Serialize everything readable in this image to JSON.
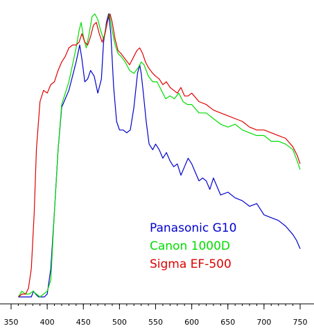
{
  "chart_data": {
    "type": "line",
    "title": "",
    "xlabel": "",
    "ylabel": "",
    "xlim": [
      350,
      750
    ],
    "ylim": [
      0,
      1
    ],
    "x_ticks": [
      350,
      400,
      450,
      500,
      550,
      600,
      650,
      700,
      750
    ],
    "x_minor_step": 10,
    "grid": false,
    "y_axis_shown": false,
    "legend_position": "bottom-right",
    "series": [
      {
        "name": "Panasonic G10",
        "color": "#0000cc",
        "x": [
          360,
          370,
          378,
          381,
          384,
          388,
          392,
          396,
          400,
          405,
          410,
          415,
          420,
          425,
          430,
          435,
          440,
          445,
          448,
          452,
          456,
          460,
          465,
          470,
          475,
          478,
          482,
          485,
          488,
          492,
          496,
          500,
          505,
          510,
          515,
          520,
          525,
          528,
          530,
          533,
          537,
          541,
          546,
          550,
          555,
          560,
          565,
          570,
          575,
          580,
          585,
          590,
          595,
          600,
          605,
          610,
          615,
          620,
          625,
          630,
          640,
          650,
          660,
          670,
          680,
          690,
          700,
          710,
          720,
          730,
          740,
          745,
          750
        ],
        "y": [
          0.0,
          0.0,
          0.0,
          0.02,
          0.01,
          0.0,
          0.0,
          0.0,
          0.01,
          0.1,
          0.3,
          0.52,
          0.67,
          0.7,
          0.73,
          0.78,
          0.83,
          0.89,
          0.84,
          0.76,
          0.77,
          0.8,
          0.78,
          0.72,
          0.77,
          0.9,
          0.97,
          1.0,
          0.93,
          0.74,
          0.62,
          0.59,
          0.59,
          0.58,
          0.59,
          0.67,
          0.79,
          0.82,
          0.79,
          0.72,
          0.62,
          0.54,
          0.52,
          0.54,
          0.52,
          0.49,
          0.51,
          0.48,
          0.46,
          0.47,
          0.43,
          0.46,
          0.49,
          0.47,
          0.44,
          0.41,
          0.42,
          0.41,
          0.38,
          0.42,
          0.36,
          0.37,
          0.35,
          0.34,
          0.32,
          0.33,
          0.29,
          0.28,
          0.27,
          0.25,
          0.22,
          0.2,
          0.17
        ]
      },
      {
        "name": "Canon 1000D",
        "color": "#00dd00",
        "x": [
          360,
          365,
          370,
          375,
          380,
          385,
          390,
          395,
          400,
          405,
          410,
          415,
          420,
          425,
          430,
          435,
          440,
          444,
          447,
          450,
          454,
          458,
          462,
          466,
          470,
          474,
          478,
          482,
          486,
          490,
          494,
          498,
          502,
          508,
          514,
          520,
          526,
          530,
          534,
          540,
          546,
          552,
          558,
          564,
          570,
          576,
          582,
          588,
          594,
          600,
          610,
          620,
          630,
          640,
          650,
          660,
          670,
          680,
          690,
          700,
          710,
          720,
          730,
          740,
          746,
          750
        ],
        "y": [
          0.0,
          0.02,
          0.01,
          0.01,
          0.02,
          0.01,
          0.0,
          0.01,
          0.02,
          0.06,
          0.3,
          0.52,
          0.68,
          0.72,
          0.76,
          0.82,
          0.88,
          0.94,
          0.97,
          0.92,
          0.88,
          0.93,
          0.99,
          1.0,
          0.98,
          0.94,
          0.91,
          0.96,
          1.0,
          0.94,
          0.89,
          0.86,
          0.85,
          0.83,
          0.8,
          0.79,
          0.81,
          0.83,
          0.82,
          0.78,
          0.76,
          0.76,
          0.73,
          0.7,
          0.71,
          0.7,
          0.72,
          0.69,
          0.68,
          0.68,
          0.65,
          0.65,
          0.63,
          0.61,
          0.6,
          0.61,
          0.59,
          0.58,
          0.57,
          0.57,
          0.55,
          0.55,
          0.54,
          0.52,
          0.48,
          0.45
        ]
      },
      {
        "name": "Sigma EF-500",
        "color": "#dd0000",
        "x": [
          360,
          365,
          370,
          374,
          378,
          382,
          385,
          390,
          395,
          400,
          405,
          410,
          415,
          420,
          425,
          430,
          435,
          440,
          444,
          448,
          452,
          456,
          460,
          464,
          468,
          472,
          476,
          480,
          484,
          487,
          490,
          494,
          498,
          502,
          508,
          514,
          520,
          524,
          528,
          532,
          536,
          540,
          546,
          550,
          555,
          560,
          565,
          570,
          575,
          580,
          585,
          590,
          595,
          600,
          610,
          620,
          630,
          640,
          650,
          660,
          670,
          680,
          690,
          700,
          710,
          720,
          730,
          740,
          746,
          750
        ],
        "y": [
          0.0,
          0.01,
          0.01,
          0.03,
          0.1,
          0.3,
          0.52,
          0.69,
          0.73,
          0.72,
          0.75,
          0.76,
          0.8,
          0.83,
          0.85,
          0.88,
          0.89,
          0.89,
          0.9,
          0.93,
          0.9,
          0.89,
          0.92,
          0.96,
          0.97,
          0.93,
          0.9,
          0.93,
          0.98,
          1.0,
          0.97,
          0.91,
          0.87,
          0.86,
          0.84,
          0.82,
          0.85,
          0.87,
          0.88,
          0.86,
          0.83,
          0.81,
          0.79,
          0.78,
          0.77,
          0.75,
          0.76,
          0.74,
          0.73,
          0.72,
          0.74,
          0.71,
          0.71,
          0.72,
          0.69,
          0.68,
          0.66,
          0.65,
          0.64,
          0.63,
          0.62,
          0.6,
          0.59,
          0.59,
          0.58,
          0.57,
          0.56,
          0.53,
          0.5,
          0.47
        ]
      }
    ]
  }
}
